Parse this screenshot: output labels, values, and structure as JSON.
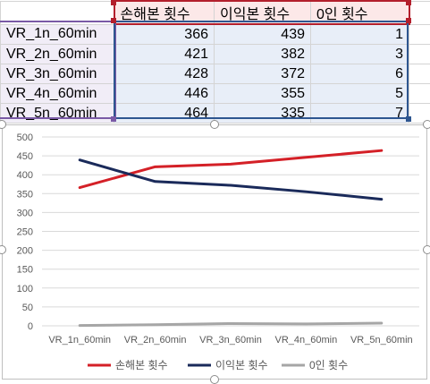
{
  "sheet": {
    "headers": [
      "",
      "손해본 횟수",
      "이익본 횟수",
      "0인 횟수",
      ""
    ],
    "rows": [
      {
        "label": "VR_1n_60min",
        "values": [
          "366",
          "439",
          "1"
        ]
      },
      {
        "label": "VR_2n_60min",
        "values": [
          "421",
          "382",
          "3"
        ]
      },
      {
        "label": "VR_3n_60min",
        "values": [
          "428",
          "372",
          "6"
        ]
      },
      {
        "label": "VR_4n_60min",
        "values": [
          "446",
          "355",
          "5"
        ]
      },
      {
        "label": "VR_5n_60min",
        "values": [
          "464",
          "335",
          "7"
        ]
      }
    ]
  },
  "chart_data": {
    "type": "line",
    "categories": [
      "VR_1n_60min",
      "VR_2n_60min",
      "VR_3n_60min",
      "VR_4n_60min",
      "VR_5n_60min"
    ],
    "series": [
      {
        "name": "손해본 횟수",
        "values": [
          366,
          421,
          428,
          446,
          464
        ],
        "color": "#d42027"
      },
      {
        "name": "이익본 횟수",
        "values": [
          439,
          382,
          372,
          355,
          335
        ],
        "color": "#1a2a5a"
      },
      {
        "name": "0인 횟수",
        "values": [
          1,
          3,
          6,
          5,
          7
        ],
        "color": "#a6a6a6"
      }
    ],
    "yticks": [
      "0",
      "50",
      "100",
      "150",
      "200",
      "250",
      "300",
      "350",
      "400",
      "450",
      "500"
    ],
    "ylim": [
      0,
      500
    ],
    "grid": true,
    "legend_position": "bottom",
    "title": "",
    "xlabel": "",
    "ylabel": ""
  }
}
